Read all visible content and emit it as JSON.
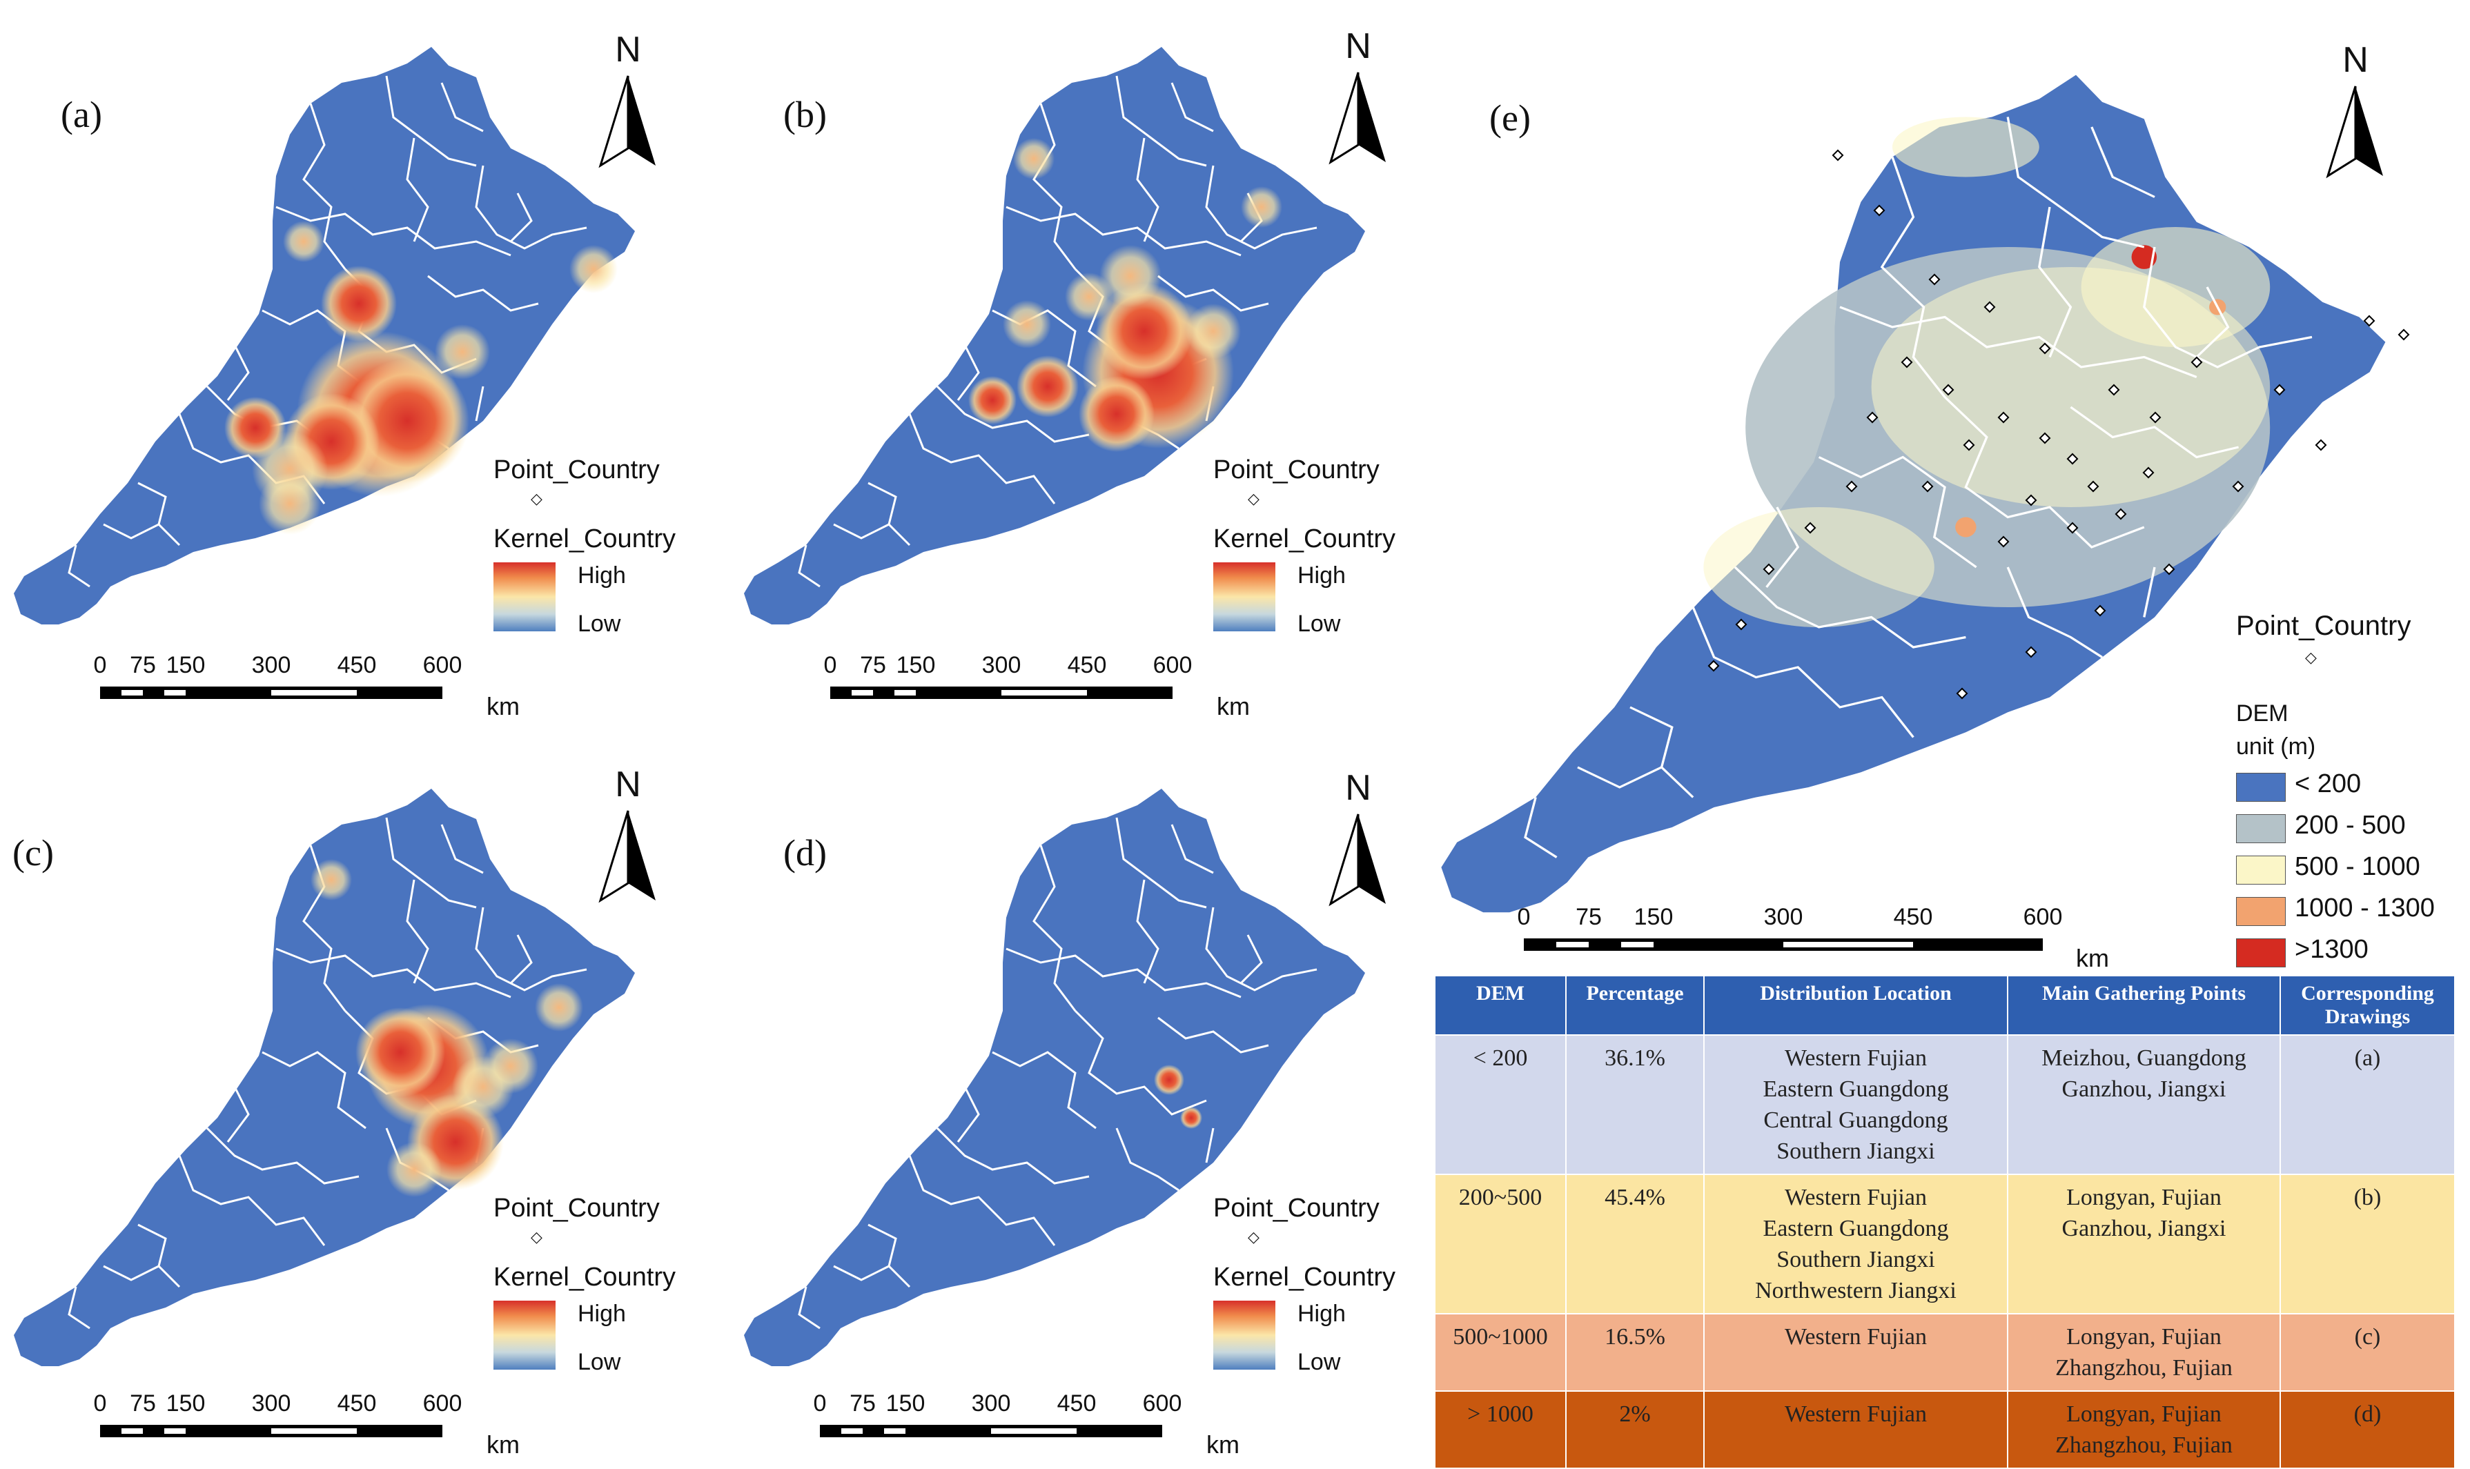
{
  "panels": {
    "a": {
      "label": "(a)"
    },
    "b": {
      "label": "(b)"
    },
    "c": {
      "label": "(c)"
    },
    "d": {
      "label": "(d)"
    },
    "e": {
      "label": "(e)"
    }
  },
  "north_letter": "N",
  "kernel_legend": {
    "point_title": "Point_Country",
    "kernel_title": "Kernel_Country",
    "high": "High",
    "low": "Low"
  },
  "scale_bar": {
    "ticks": [
      "0",
      "75",
      "150",
      "300",
      "450",
      "600"
    ],
    "unit": "km"
  },
  "dem_legend": {
    "point_title": "Point_Country",
    "title": "DEM",
    "unit": "unit (m)",
    "classes": [
      {
        "label": "< 200",
        "color": "#4a74bf"
      },
      {
        "label": "200 - 500",
        "color": "#b4c2c8"
      },
      {
        "label": "500 - 1000",
        "color": "#fbf6c8"
      },
      {
        "label": "1000  - 1300",
        "color": "#f2a36f"
      },
      {
        "label": ">1300",
        "color": "#d52b21"
      }
    ]
  },
  "colors": {
    "land": "#4a74bf",
    "boundary": "#ffffff",
    "hotspot": "#d7302a",
    "table_header": "#2e5fb0"
  },
  "table": {
    "headers": [
      "DEM",
      "Percentage",
      "Distribution Location",
      "Main Gathering Points",
      "Corresponding Drawings"
    ],
    "rows": [
      {
        "dem": "< 200",
        "percentage": "36.1%",
        "locations": [
          "Western Fujian",
          "Eastern Guangdong",
          "Central Guangdong",
          "Southern Jiangxi"
        ],
        "gathering": [
          "Meizhou, Guangdong",
          "Ganzhou, Jiangxi"
        ],
        "drawing": "(a)",
        "color": "#d2d8ec"
      },
      {
        "dem": "200~500",
        "percentage": "45.4%",
        "locations": [
          "Western Fujian",
          "Eastern Guangdong",
          "Southern Jiangxi",
          "Northwestern Jiangxi"
        ],
        "gathering": [
          "Longyan,   Fujian",
          "Ganzhou, Jiangxi"
        ],
        "drawing": "(b)",
        "color": "#fbe5a2"
      },
      {
        "dem": "500~1000",
        "percentage": "16.5%",
        "locations": [
          "Western Fujian"
        ],
        "gathering": [
          "Longyan,   Fujian",
          "Zhangzhou,   Fujian"
        ],
        "drawing": "(c)",
        "color": "#f2b08b"
      },
      {
        "dem": "> 1000",
        "percentage": "2%",
        "locations": [
          "Western Fujian"
        ],
        "gathering": [
          "Longyan,   Fujian",
          "Zhangzhou,   Fujian"
        ],
        "drawing": "(d)",
        "color": "#c8580f"
      }
    ]
  }
}
